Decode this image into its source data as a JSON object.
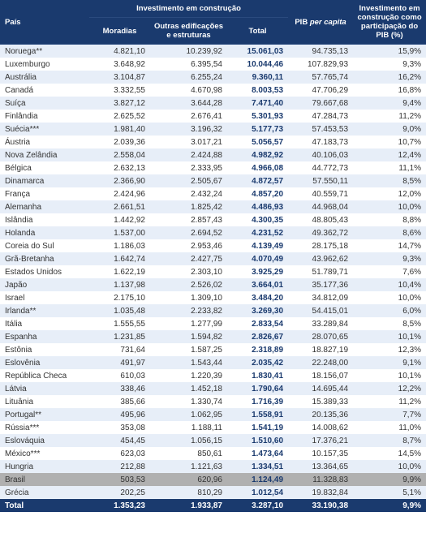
{
  "headers": {
    "pais": "País",
    "investimento_group": "Investimento em construção",
    "moradias": "Moradias",
    "outras": "Outras edificações e estruturas",
    "total": "Total",
    "pib_per_capita": "PIB per capita",
    "participacao": "Investimento em construção como participação do PIB (%)"
  },
  "rows": [
    {
      "pais": "Noruega**",
      "moradias": "4.821,10",
      "outras": "10.239,92",
      "total": "15.061,03",
      "pib": "94.735,13",
      "pct": "15,9%"
    },
    {
      "pais": "Luxemburgo",
      "moradias": "3.648,92",
      "outras": "6.395,54",
      "total": "10.044,46",
      "pib": "107.829,93",
      "pct": "9,3%"
    },
    {
      "pais": "Austrália",
      "moradias": "3.104,87",
      "outras": "6.255,24",
      "total": "9.360,11",
      "pib": "57.765,74",
      "pct": "16,2%"
    },
    {
      "pais": "Canadá",
      "moradias": "3.332,55",
      "outras": "4.670,98",
      "total": "8.003,53",
      "pib": "47.706,29",
      "pct": "16,8%"
    },
    {
      "pais": "Suíça",
      "moradias": "3.827,12",
      "outras": "3.644,28",
      "total": "7.471,40",
      "pib": "79.667,68",
      "pct": "9,4%"
    },
    {
      "pais": "Finlândia",
      "moradias": "2.625,52",
      "outras": "2.676,41",
      "total": "5.301,93",
      "pib": "47.284,73",
      "pct": "11,2%"
    },
    {
      "pais": "Suécia***",
      "moradias": "1.981,40",
      "outras": "3.196,32",
      "total": "5.177,73",
      "pib": "57.453,53",
      "pct": "9,0%"
    },
    {
      "pais": "Áustria",
      "moradias": "2.039,36",
      "outras": "3.017,21",
      "total": "5.056,57",
      "pib": "47.183,73",
      "pct": "10,7%"
    },
    {
      "pais": "Nova Zelândia",
      "moradias": "2.558,04",
      "outras": "2.424,88",
      "total": "4.982,92",
      "pib": "40.106,03",
      "pct": "12,4%"
    },
    {
      "pais": "Bélgica",
      "moradias": "2.632,13",
      "outras": "2.333,95",
      "total": "4.966,08",
      "pib": "44.772,73",
      "pct": "11,1%"
    },
    {
      "pais": "Dinamarca",
      "moradias": "2.366,90",
      "outras": "2.505,67",
      "total": "4.872,57",
      "pib": "57.550,11",
      "pct": "8,5%"
    },
    {
      "pais": "França",
      "moradias": "2.424,96",
      "outras": "2.432,24",
      "total": "4.857,20",
      "pib": "40.559,71",
      "pct": "12,0%"
    },
    {
      "pais": "Alemanha",
      "moradias": "2.661,51",
      "outras": "1.825,42",
      "total": "4.486,93",
      "pib": "44.968,04",
      "pct": "10,0%"
    },
    {
      "pais": "Islândia",
      "moradias": "1.442,92",
      "outras": "2.857,43",
      "total": "4.300,35",
      "pib": "48.805,43",
      "pct": "8,8%"
    },
    {
      "pais": "Holanda",
      "moradias": "1.537,00",
      "outras": "2.694,52",
      "total": "4.231,52",
      "pib": "49.362,72",
      "pct": "8,6%"
    },
    {
      "pais": "Coreia do Sul",
      "moradias": "1.186,03",
      "outras": "2.953,46",
      "total": "4.139,49",
      "pib": "28.175,18",
      "pct": "14,7%"
    },
    {
      "pais": "Grã-Bretanha",
      "moradias": "1.642,74",
      "outras": "2.427,75",
      "total": "4.070,49",
      "pib": "43.962,62",
      "pct": "9,3%"
    },
    {
      "pais": "Estados Unidos",
      "moradias": "1.622,19",
      "outras": "2.303,10",
      "total": "3.925,29",
      "pib": "51.789,71",
      "pct": "7,6%"
    },
    {
      "pais": "Japão",
      "moradias": "1.137,98",
      "outras": "2.526,02",
      "total": "3.664,01",
      "pib": "35.177,36",
      "pct": "10,4%"
    },
    {
      "pais": "Israel",
      "moradias": "2.175,10",
      "outras": "1.309,10",
      "total": "3.484,20",
      "pib": "34.812,09",
      "pct": "10,0%"
    },
    {
      "pais": "Irlanda**",
      "moradias": "1.035,48",
      "outras": "2.233,82",
      "total": "3.269,30",
      "pib": "54.415,01",
      "pct": "6,0%"
    },
    {
      "pais": "Itália",
      "moradias": "1.555,55",
      "outras": "1.277,99",
      "total": "2.833,54",
      "pib": "33.289,84",
      "pct": "8,5%"
    },
    {
      "pais": "Espanha",
      "moradias": "1.231,85",
      "outras": "1.594,82",
      "total": "2.826,67",
      "pib": "28.070,65",
      "pct": "10,1%"
    },
    {
      "pais": "Estônia",
      "moradias": "731,64",
      "outras": "1.587,25",
      "total": "2.318,89",
      "pib": "18.827,19",
      "pct": "12,3%"
    },
    {
      "pais": "Eslovênia",
      "moradias": "491,97",
      "outras": "1.543,44",
      "total": "2.035,42",
      "pib": "22.248,00",
      "pct": "9,1%"
    },
    {
      "pais": "República Checa",
      "moradias": "610,03",
      "outras": "1.220,39",
      "total": "1.830,41",
      "pib": "18.156,07",
      "pct": "10,1%"
    },
    {
      "pais": "Látvia",
      "moradias": "338,46",
      "outras": "1.452,18",
      "total": "1.790,64",
      "pib": "14.695,44",
      "pct": "12,2%"
    },
    {
      "pais": "Lituânia",
      "moradias": "385,66",
      "outras": "1.330,74",
      "total": "1.716,39",
      "pib": "15.389,33",
      "pct": "11,2%"
    },
    {
      "pais": "Portugal**",
      "moradias": "495,96",
      "outras": "1.062,95",
      "total": "1.558,91",
      "pib": "20.135,36",
      "pct": "7,7%"
    },
    {
      "pais": "Rússia***",
      "moradias": "353,08",
      "outras": "1.188,11",
      "total": "1.541,19",
      "pib": "14.008,62",
      "pct": "11,0%"
    },
    {
      "pais": "Eslováquia",
      "moradias": "454,45",
      "outras": "1.056,15",
      "total": "1.510,60",
      "pib": "17.376,21",
      "pct": "8,7%"
    },
    {
      "pais": "México***",
      "moradias": "623,03",
      "outras": "850,61",
      "total": "1.473,64",
      "pib": "10.157,35",
      "pct": "14,5%"
    },
    {
      "pais": "Hungria",
      "moradias": "212,88",
      "outras": "1.121,63",
      "total": "1.334,51",
      "pib": "13.364,65",
      "pct": "10,0%"
    },
    {
      "pais": "Brasil",
      "moradias": "503,53",
      "outras": "620,96",
      "total": "1.124,49",
      "pib": "11.328,83",
      "pct": "9,9%",
      "highlight": true
    },
    {
      "pais": "Grécia",
      "moradias": "202,25",
      "outras": "810,29",
      "total": "1.012,54",
      "pib": "19.832,84",
      "pct": "5,1%"
    }
  ],
  "total_row": {
    "pais": "Total",
    "moradias": "1.353,23",
    "outras": "1.933,87",
    "total": "3.287,10",
    "pib": "33.190,38",
    "pct": "9,9%"
  }
}
